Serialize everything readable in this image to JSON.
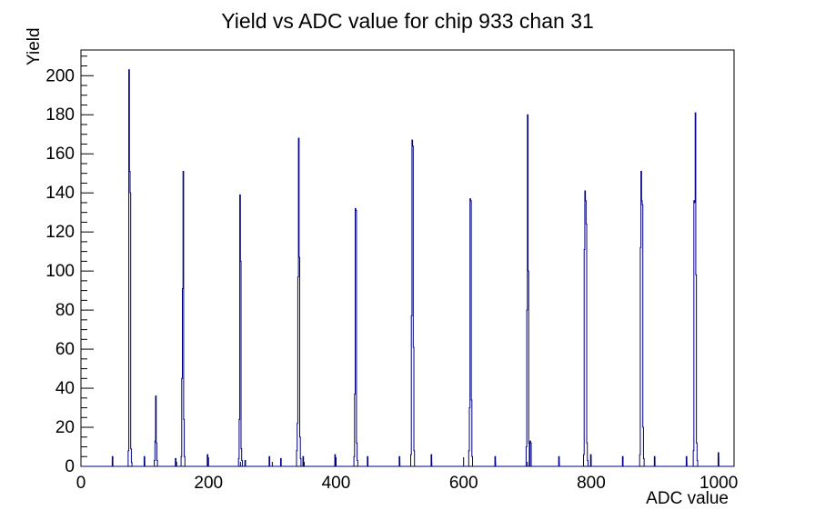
{
  "title": "Yield vs ADC value for chip 933 chan 31",
  "colors": {
    "histogram_line": "#000080",
    "axis": "#000000",
    "background": "#ffffff",
    "text": "#000000"
  },
  "chart_data": {
    "type": "bar",
    "title": "Yield vs ADC value for chip 933 chan 31",
    "xlabel": "ADC value",
    "ylabel": "Yield",
    "xlim": [
      0,
      1024
    ],
    "ylim": [
      0,
      213.15
    ],
    "grid": false,
    "legend": false,
    "bin_width": 1,
    "x_major_ticks": [
      0,
      200,
      400,
      600,
      800,
      1000
    ],
    "x_minor_step": 50,
    "y_major_ticks": [
      0,
      20,
      40,
      60,
      80,
      100,
      120,
      140,
      160,
      180,
      200
    ],
    "y_minor_step": 5,
    "bins": [
      [
        49,
        5
      ],
      [
        74,
        8
      ],
      [
        75,
        203
      ],
      [
        76,
        151
      ],
      [
        77,
        140
      ],
      [
        78,
        9
      ],
      [
        79,
        2
      ],
      [
        99,
        5
      ],
      [
        115,
        3
      ],
      [
        116,
        13
      ],
      [
        117,
        36
      ],
      [
        118,
        12
      ],
      [
        119,
        3
      ],
      [
        148,
        4
      ],
      [
        157,
        5
      ],
      [
        158,
        45
      ],
      [
        159,
        91
      ],
      [
        160,
        151
      ],
      [
        161,
        24
      ],
      [
        162,
        5
      ],
      [
        198,
        6
      ],
      [
        247,
        4
      ],
      [
        248,
        24
      ],
      [
        249,
        139
      ],
      [
        250,
        105
      ],
      [
        251,
        9
      ],
      [
        252,
        3
      ],
      [
        257,
        3
      ],
      [
        295,
        5
      ],
      [
        313,
        4
      ],
      [
        338,
        8
      ],
      [
        339,
        22
      ],
      [
        340,
        97
      ],
      [
        341,
        168
      ],
      [
        342,
        107
      ],
      [
        343,
        15
      ],
      [
        344,
        4
      ],
      [
        348,
        5
      ],
      [
        398,
        6
      ],
      [
        428,
        5
      ],
      [
        429,
        37
      ],
      [
        430,
        132
      ],
      [
        431,
        131
      ],
      [
        432,
        12
      ],
      [
        433,
        3
      ],
      [
        449,
        5
      ],
      [
        499,
        5
      ],
      [
        517,
        6
      ],
      [
        518,
        77
      ],
      [
        519,
        167
      ],
      [
        520,
        164
      ],
      [
        521,
        61
      ],
      [
        522,
        8
      ],
      [
        549,
        6
      ],
      [
        608,
        8
      ],
      [
        609,
        30
      ],
      [
        610,
        137
      ],
      [
        611,
        136
      ],
      [
        612,
        34
      ],
      [
        613,
        5
      ],
      [
        649,
        5
      ],
      [
        698,
        10
      ],
      [
        699,
        80
      ],
      [
        700,
        180
      ],
      [
        701,
        100
      ],
      [
        702,
        12
      ],
      [
        704,
        13
      ],
      [
        705,
        12
      ],
      [
        749,
        5
      ],
      [
        788,
        6
      ],
      [
        789,
        111
      ],
      [
        790,
        141
      ],
      [
        791,
        136
      ],
      [
        792,
        124
      ],
      [
        793,
        12
      ],
      [
        794,
        3
      ],
      [
        799,
        6
      ],
      [
        849,
        5
      ],
      [
        876,
        6
      ],
      [
        877,
        112
      ],
      [
        878,
        151
      ],
      [
        879,
        136
      ],
      [
        880,
        134
      ],
      [
        881,
        20
      ],
      [
        882,
        4
      ],
      [
        899,
        5
      ],
      [
        949,
        5
      ],
      [
        960,
        8
      ],
      [
        961,
        136
      ],
      [
        962,
        135
      ],
      [
        963,
        181
      ],
      [
        964,
        98
      ],
      [
        965,
        12
      ],
      [
        966,
        3
      ],
      [
        999,
        7
      ]
    ]
  }
}
